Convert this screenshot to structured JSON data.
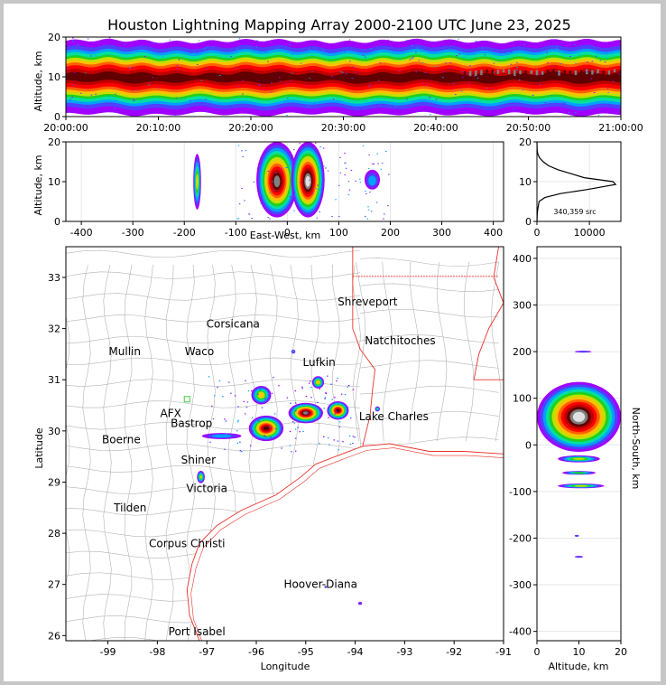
{
  "colors": {
    "state_border": "#e8322a",
    "county_border": "#b4b4b4",
    "station_orange": "#f08c50",
    "station_blue": "#2020d0",
    "station_green": "#60d060"
  },
  "colormap": [
    "#a000ff",
    "#5040ff",
    "#00a0ff",
    "#00e0a0",
    "#20d020",
    "#c0e000",
    "#ffc000",
    "#ff6000",
    "#ff0000",
    "#c00000",
    "#600000",
    "#808080",
    "#e0e0e0"
  ],
  "chart_data": [
    {
      "type": "heatmap",
      "id": "time-altitude",
      "title": "Houston Lightning Mapping Array 2000-2100 UTC June 23, 2025",
      "ylabel": "Altitude, km",
      "xlabel": "",
      "xticks": [
        "20:00:00",
        "20:10:00",
        "20:20:00",
        "20:30:00",
        "20:40:00",
        "20:50:00",
        "21:00:00"
      ],
      "yticks": [
        "0",
        "10",
        "20"
      ],
      "xlim": [
        0,
        60
      ],
      "ylim": [
        0,
        20
      ],
      "band": {
        "core_altitude_km": 10,
        "core_halfwidth_km": 2.5,
        "outer_halfwidth_km": 9
      },
      "intense_segment_minutes": [
        43,
        60
      ]
    },
    {
      "type": "heatmap",
      "id": "eastwest-altitude",
      "xlabel": "East-West, km",
      "ylabel": "Altitude, km",
      "xlim": [
        -430,
        420
      ],
      "ylim": [
        0,
        20
      ],
      "xticks": [
        "-400",
        "-300",
        "-200",
        "-100",
        "0",
        "100",
        "200",
        "300",
        "400"
      ],
      "yticks": [
        "0",
        "10",
        "20"
      ],
      "clusters_km": [
        {
          "x": -175,
          "width": 15,
          "alt_lo": 3,
          "alt_hi": 17,
          "level": 5
        },
        {
          "x": -20,
          "width": 80,
          "alt_lo": 1,
          "alt_hi": 20,
          "level": 11
        },
        {
          "x": 40,
          "width": 65,
          "alt_lo": 1,
          "alt_hi": 20,
          "level": 12
        },
        {
          "x": 165,
          "width": 30,
          "alt_lo": 8,
          "alt_hi": 13,
          "level": 2
        }
      ]
    },
    {
      "type": "line",
      "id": "altitude-histogram",
      "xticks": [
        "0",
        "10000"
      ],
      "yticks": [
        "0",
        "10",
        "20"
      ],
      "xlim": [
        0,
        16000
      ],
      "ylim": [
        0,
        20
      ],
      "annotation": "340,359 src",
      "series": [
        {
          "x": [
            0,
            60,
            150,
            400,
            1500,
            4500,
            9500,
            15000,
            14500,
            9000,
            6500,
            4000,
            2200,
            1200,
            500,
            150,
            40,
            0
          ],
          "y": [
            0,
            2,
            3,
            5,
            6,
            7,
            8,
            9.3,
            10,
            11,
            12,
            13,
            14,
            15,
            16,
            17,
            18,
            20
          ]
        }
      ]
    },
    {
      "type": "scatter",
      "id": "plan-view-map",
      "xlabel": "Longitude",
      "ylabel": "Latitude",
      "xlim": [
        -99.85,
        -91.0
      ],
      "ylim": [
        25.9,
        33.6
      ],
      "xticks": [
        "-99",
        "-98",
        "-97",
        "-96",
        "-95",
        "-94",
        "-93",
        "-92",
        "-91"
      ],
      "yticks": [
        "26",
        "27",
        "28",
        "29",
        "30",
        "31",
        "32",
        "33"
      ],
      "clusters": [
        {
          "lon": -95.8,
          "lat": 30.05,
          "rx": 0.35,
          "ry": 0.25,
          "level": 10
        },
        {
          "lon": -95.0,
          "lat": 30.35,
          "rx": 0.35,
          "ry": 0.2,
          "level": 11
        },
        {
          "lon": -94.35,
          "lat": 30.4,
          "rx": 0.22,
          "ry": 0.18,
          "level": 10
        },
        {
          "lon": -95.9,
          "lat": 30.7,
          "rx": 0.2,
          "ry": 0.18,
          "level": 6
        },
        {
          "lon": -94.75,
          "lat": 30.95,
          "rx": 0.12,
          "ry": 0.12,
          "level": 6
        },
        {
          "lon": -96.7,
          "lat": 29.9,
          "rx": 0.4,
          "ry": 0.06,
          "level": 2
        },
        {
          "lon": -97.12,
          "lat": 29.1,
          "rx": 0.08,
          "ry": 0.12,
          "level": 5
        },
        {
          "lon": -93.55,
          "lat": 30.43,
          "rx": 0.05,
          "ry": 0.05,
          "level": 3
        },
        {
          "lon": -93.9,
          "lat": 26.63,
          "rx": 0.04,
          "ry": 0.03,
          "level": 1
        },
        {
          "lon": -94.6,
          "lat": 26.95,
          "rx": 0.02,
          "ry": 0.02,
          "level": 1
        },
        {
          "lon": -95.25,
          "lat": 31.55,
          "rx": 0.04,
          "ry": 0.04,
          "level": 2
        }
      ],
      "cities": [
        {
          "name": "Shreveport",
          "lon": -93.75,
          "lat": 32.52,
          "color": "#000000"
        },
        {
          "name": "Corsicana",
          "lon": -96.47,
          "lat": 32.09,
          "color": "#000000"
        },
        {
          "name": "Mullin",
          "lon": -98.66,
          "lat": 31.55,
          "color": "#f08c50"
        },
        {
          "name": "Waco",
          "lon": -97.15,
          "lat": 31.55,
          "color": "#000000"
        },
        {
          "name": "Natchitoches",
          "lon": -93.09,
          "lat": 31.76,
          "color": "#000000"
        },
        {
          "name": "Lufkin",
          "lon": -94.73,
          "lat": 31.34,
          "color": "#000000"
        },
        {
          "name": "AFX",
          "lon": -97.73,
          "lat": 30.34,
          "color": "#f08c50"
        },
        {
          "name": "Bastrop",
          "lon": -97.31,
          "lat": 30.15,
          "color": "#000000"
        },
        {
          "name": "Lake Charles",
          "lon": -93.22,
          "lat": 30.28,
          "color": "#000000"
        },
        {
          "name": "Boerne",
          "lon": -98.73,
          "lat": 29.83,
          "color": "#000000"
        },
        {
          "name": "Shiner",
          "lon": -97.17,
          "lat": 29.43,
          "color": "#000000"
        },
        {
          "name": "Victoria",
          "lon": -97.0,
          "lat": 28.88,
          "color": "#000000"
        },
        {
          "name": "Tilden",
          "lon": -98.55,
          "lat": 28.5,
          "color": "#000000"
        },
        {
          "name": "Corpus Christi",
          "lon": -97.4,
          "lat": 27.8,
          "color": "#000000"
        },
        {
          "name": "Hoover-Diana",
          "lon": -94.7,
          "lat": 27.0,
          "color": "#2020d0"
        },
        {
          "name": "Port Isabel",
          "lon": -97.2,
          "lat": 26.08,
          "color": "#000000"
        }
      ]
    },
    {
      "type": "heatmap",
      "id": "altitude-northsouth",
      "xlabel": "Altitude, km",
      "ylabel": "North-South, km",
      "xlim": [
        0,
        20
      ],
      "ylim": [
        -420,
        425
      ],
      "xticks": [
        "0",
        "10",
        "20"
      ],
      "yticks": [
        "-400",
        "-300",
        "-200",
        "-100",
        "0",
        "100",
        "200",
        "300",
        "400"
      ],
      "clusters_km": [
        {
          "y": 60,
          "height": 150,
          "alt_lo": 0,
          "alt_hi": 20,
          "level": 12
        },
        {
          "y": -30,
          "height": 15,
          "alt_lo": 5,
          "alt_hi": 15,
          "level": 5
        },
        {
          "y": -60,
          "height": 8,
          "alt_lo": 6,
          "alt_hi": 14,
          "level": 4
        },
        {
          "y": -88,
          "height": 10,
          "alt_lo": 5,
          "alt_hi": 16,
          "level": 5
        },
        {
          "y": 200,
          "height": 4,
          "alt_lo": 9,
          "alt_hi": 13,
          "level": 1
        },
        {
          "y": -195,
          "height": 4,
          "alt_lo": 9,
          "alt_hi": 10,
          "level": 1
        },
        {
          "y": -240,
          "height": 4,
          "alt_lo": 9,
          "alt_hi": 11,
          "level": 1
        }
      ]
    }
  ]
}
